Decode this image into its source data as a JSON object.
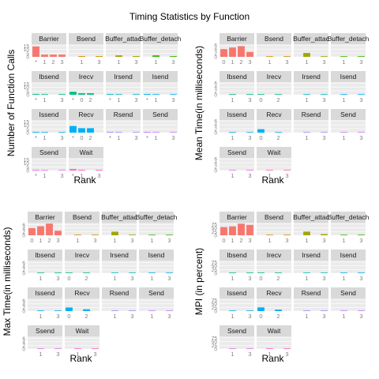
{
  "title": "Timing Statistics by Function",
  "colors": {
    "Barrier": "#f8766d",
    "Bsend": "#d89000",
    "Buffer_attach": "#a3a500",
    "Buffer_detach": "#39b600",
    "Ibsend": "#00bf7d",
    "Irecv": "#00bf7d",
    "Irsend": "#00bfc4",
    "Isend": "#00b0f6",
    "Issend": "#00b0f6",
    "Recv": "#00b0f6",
    "Rsend": "#9590ff",
    "Send": "#c77cff",
    "Ssend": "#e76bf3",
    "Wait": "#ff62bc"
  },
  "chart_data": [
    {
      "type": "bar",
      "ylabel": "Number of Function Calls",
      "xlabel": "Rank",
      "yticks": [
        "0",
        "5",
        "10",
        "15"
      ],
      "ylim": [
        0,
        17
      ],
      "panels": [
        {
          "name": "Barrier",
          "ticks": [
            "*",
            "1",
            "2",
            "3"
          ],
          "x": [
            0,
            1,
            2,
            3
          ],
          "values": [
            14,
            3,
            3,
            3
          ]
        },
        {
          "name": "Bsend",
          "ticks": [
            "1",
            "3"
          ],
          "x": [
            1,
            3
          ],
          "values": [
            1,
            1
          ]
        },
        {
          "name": "Buffer_attac",
          "ticks": [
            "1",
            "3"
          ],
          "x": [
            1,
            3
          ],
          "values": [
            2,
            1
          ]
        },
        {
          "name": "Buffer_detach",
          "ticks": [
            "1",
            "3"
          ],
          "x": [
            1,
            3
          ],
          "values": [
            2,
            1
          ]
        },
        {
          "name": "Ibsend",
          "ticks": [
            "*",
            "1",
            "3"
          ],
          "x": [
            0,
            1,
            3
          ],
          "values": [
            1,
            0.5,
            0.5
          ]
        },
        {
          "name": "Irecv",
          "ticks": [
            "*",
            "0",
            "2"
          ],
          "x": [
            0,
            1,
            2
          ],
          "values": [
            4,
            2,
            2
          ]
        },
        {
          "name": "Irsend",
          "ticks": [
            "*",
            "1",
            "3"
          ],
          "x": [
            0,
            1,
            3
          ],
          "values": [
            1,
            0.5,
            0.5
          ]
        },
        {
          "name": "Isend",
          "ticks": [
            "*",
            "1",
            "3"
          ],
          "x": [
            0,
            1,
            3
          ],
          "values": [
            1,
            0.5,
            0.5
          ]
        },
        {
          "name": "Issend",
          "ticks": [
            "*",
            "1",
            "3"
          ],
          "x": [
            0,
            1,
            3
          ],
          "values": [
            1,
            0.5,
            0.5
          ]
        },
        {
          "name": "Recv",
          "ticks": [
            "*",
            "0",
            "2"
          ],
          "x": [
            0,
            1,
            2
          ],
          "values": [
            9,
            6,
            6
          ]
        },
        {
          "name": "Rsend",
          "ticks": [
            "*",
            "1",
            "3"
          ],
          "x": [
            0,
            1,
            3
          ],
          "values": [
            1,
            0.5,
            0.5
          ]
        },
        {
          "name": "Send",
          "ticks": [
            "*",
            "1",
            "3"
          ],
          "x": [
            0,
            1,
            3
          ],
          "values": [
            1,
            0.5,
            0.5
          ]
        },
        {
          "name": "Ssend",
          "ticks": [
            "*",
            "1",
            "3"
          ],
          "x": [
            0,
            1,
            3
          ],
          "values": [
            1,
            0.5,
            0.5
          ]
        },
        {
          "name": "Wait",
          "ticks": [
            "*",
            "1",
            "3"
          ],
          "x": [
            0,
            1,
            3
          ],
          "values": [
            2,
            1,
            1
          ]
        }
      ]
    },
    {
      "type": "bar",
      "ylabel": "Mean Time(in milliseconds)",
      "xlabel": "Rank",
      "yticks": [
        "0",
        "2",
        "4",
        "6"
      ],
      "ylim": [
        0,
        6.5
      ],
      "panels": [
        {
          "name": "Barrier",
          "ticks": [
            "0",
            "1",
            "2",
            "3"
          ],
          "x": [
            0,
            1,
            2,
            3
          ],
          "values": [
            4,
            4.8,
            5.5,
            2.5
          ]
        },
        {
          "name": "Bsend",
          "ticks": [
            "1",
            "3"
          ],
          "x": [
            1,
            3
          ],
          "values": [
            0,
            0
          ]
        },
        {
          "name": "Buffer_attac",
          "ticks": [
            "1",
            "3"
          ],
          "x": [
            1,
            3
          ],
          "values": [
            2,
            0
          ]
        },
        {
          "name": "Buffer_detach",
          "ticks": [
            "1",
            "3"
          ],
          "x": [
            1,
            3
          ],
          "values": [
            0,
            0
          ]
        },
        {
          "name": "Ibsend",
          "ticks": [
            "1",
            "3"
          ],
          "x": [
            1,
            3
          ],
          "values": [
            0,
            0
          ]
        },
        {
          "name": "Irecv",
          "ticks": [
            "0",
            "2"
          ],
          "x": [
            0,
            2
          ],
          "values": [
            0,
            0
          ]
        },
        {
          "name": "Irsend",
          "ticks": [
            "1",
            "3"
          ],
          "x": [
            1,
            3
          ],
          "values": [
            0,
            0
          ]
        },
        {
          "name": "Isend",
          "ticks": [
            "1",
            "3"
          ],
          "x": [
            1,
            3
          ],
          "values": [
            0,
            0
          ]
        },
        {
          "name": "Issend",
          "ticks": [
            "1",
            "3"
          ],
          "x": [
            1,
            3
          ],
          "values": [
            0,
            0
          ]
        },
        {
          "name": "Recv",
          "ticks": [
            "0",
            "2"
          ],
          "x": [
            0,
            2
          ],
          "values": [
            1.8,
            0.3
          ]
        },
        {
          "name": "Rsend",
          "ticks": [
            "1",
            "3"
          ],
          "x": [
            1,
            3
          ],
          "values": [
            0,
            0
          ]
        },
        {
          "name": "Send",
          "ticks": [
            "1",
            "3"
          ],
          "x": [
            1,
            3
          ],
          "values": [
            0,
            0
          ]
        },
        {
          "name": "Ssend",
          "ticks": [
            "1",
            "3"
          ],
          "x": [
            1,
            3
          ],
          "values": [
            0,
            0
          ]
        },
        {
          "name": "Wait",
          "ticks": [
            "1",
            "3"
          ],
          "x": [
            1,
            3
          ],
          "values": [
            0,
            0
          ]
        }
      ]
    },
    {
      "type": "bar",
      "ylabel": "Max Time(in milliseconds)",
      "xlabel": "Rank",
      "yticks": [
        "0",
        "2",
        "4",
        "6"
      ],
      "ylim": [
        0,
        7
      ],
      "panels": [
        {
          "name": "Barrier",
          "ticks": [
            "0",
            "1",
            "2",
            "3"
          ],
          "x": [
            0,
            1,
            2,
            3
          ],
          "values": [
            4,
            5,
            6.5,
            2.5
          ]
        },
        {
          "name": "Bsend",
          "ticks": [
            "1",
            "3"
          ],
          "x": [
            1,
            3
          ],
          "values": [
            0,
            0
          ]
        },
        {
          "name": "Buffer_attac",
          "ticks": [
            "1",
            "3"
          ],
          "x": [
            1,
            3
          ],
          "values": [
            2,
            0
          ]
        },
        {
          "name": "Buffer_detach",
          "ticks": [
            "1",
            "3"
          ],
          "x": [
            1,
            3
          ],
          "values": [
            0,
            0
          ]
        },
        {
          "name": "Ibsend",
          "ticks": [
            "1",
            "3"
          ],
          "x": [
            1,
            3
          ],
          "values": [
            0,
            0
          ]
        },
        {
          "name": "Irecv",
          "ticks": [
            "0",
            "2"
          ],
          "x": [
            0,
            2
          ],
          "values": [
            0,
            0
          ]
        },
        {
          "name": "Irsend",
          "ticks": [
            "1",
            "3"
          ],
          "x": [
            1,
            3
          ],
          "values": [
            0,
            0
          ]
        },
        {
          "name": "Isend",
          "ticks": [
            "1",
            "3"
          ],
          "x": [
            1,
            3
          ],
          "values": [
            0,
            0
          ]
        },
        {
          "name": "Issend",
          "ticks": [
            "1",
            "3"
          ],
          "x": [
            1,
            3
          ],
          "values": [
            0,
            0
          ]
        },
        {
          "name": "Recv",
          "ticks": [
            "0",
            "2"
          ],
          "x": [
            0,
            2
          ],
          "values": [
            2,
            1
          ]
        },
        {
          "name": "Rsend",
          "ticks": [
            "1",
            "3"
          ],
          "x": [
            1,
            3
          ],
          "values": [
            0,
            0
          ]
        },
        {
          "name": "Send",
          "ticks": [
            "1",
            "3"
          ],
          "x": [
            1,
            3
          ],
          "values": [
            0,
            0
          ]
        },
        {
          "name": "Ssend",
          "ticks": [
            "1",
            "3"
          ],
          "x": [
            1,
            3
          ],
          "values": [
            0,
            0
          ]
        },
        {
          "name": "Wait",
          "ticks": [
            "1",
            "3"
          ],
          "x": [
            1,
            3
          ],
          "values": [
            0,
            0
          ]
        }
      ]
    },
    {
      "type": "bar",
      "ylabel": "MPI (in percent)",
      "xlabel": "Rank",
      "yticks": [
        "0",
        "25",
        "50",
        "75"
      ],
      "ylim": [
        0,
        85
      ],
      "panels": [
        {
          "name": "Barrier",
          "ticks": [
            "0",
            "1",
            "2",
            "3"
          ],
          "x": [
            0,
            1,
            2,
            3
          ],
          "values": [
            55,
            60,
            78,
            70
          ]
        },
        {
          "name": "Bsend",
          "ticks": [
            "1",
            "3"
          ],
          "x": [
            1,
            3
          ],
          "values": [
            0,
            0
          ]
        },
        {
          "name": "Buffer_attac",
          "ticks": [
            "1",
            "3"
          ],
          "x": [
            1,
            3
          ],
          "values": [
            25,
            8
          ]
        },
        {
          "name": "Buffer_detach",
          "ticks": [
            "1",
            "3"
          ],
          "x": [
            1,
            3
          ],
          "values": [
            0,
            0
          ]
        },
        {
          "name": "Ibsend",
          "ticks": [
            "1",
            "3"
          ],
          "x": [
            1,
            3
          ],
          "values": [
            0,
            0
          ]
        },
        {
          "name": "Irecv",
          "ticks": [
            "0",
            "2"
          ],
          "x": [
            0,
            2
          ],
          "values": [
            0,
            0
          ]
        },
        {
          "name": "Irsend",
          "ticks": [
            "1",
            "3"
          ],
          "x": [
            1,
            3
          ],
          "values": [
            0,
            0
          ]
        },
        {
          "name": "Isend",
          "ticks": [
            "1",
            "3"
          ],
          "x": [
            1,
            3
          ],
          "values": [
            0,
            0
          ]
        },
        {
          "name": "Issend",
          "ticks": [
            "1",
            "3"
          ],
          "x": [
            1,
            3
          ],
          "values": [
            0,
            0
          ]
        },
        {
          "name": "Recv",
          "ticks": [
            "0",
            "2"
          ],
          "x": [
            0,
            2
          ],
          "values": [
            25,
            10
          ]
        },
        {
          "name": "Rsend",
          "ticks": [
            "1",
            "3"
          ],
          "x": [
            1,
            3
          ],
          "values": [
            0,
            0
          ]
        },
        {
          "name": "Send",
          "ticks": [
            "1",
            "3"
          ],
          "x": [
            1,
            3
          ],
          "values": [
            0,
            0
          ]
        },
        {
          "name": "Ssend",
          "ticks": [
            "1",
            "3"
          ],
          "x": [
            1,
            3
          ],
          "values": [
            0,
            0
          ]
        },
        {
          "name": "Wait",
          "ticks": [
            "1",
            "3"
          ],
          "x": [
            1,
            3
          ],
          "values": [
            0,
            0
          ]
        }
      ]
    }
  ]
}
